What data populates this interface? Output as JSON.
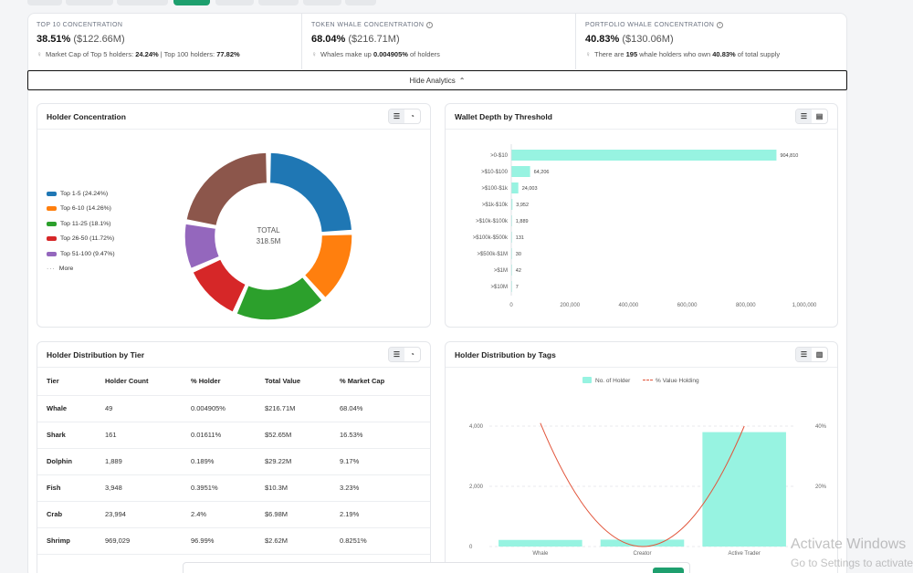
{
  "stats": [
    {
      "title": "TOP 10 CONCENTRATION",
      "main": "38.51%",
      "sub": "($122.66M)",
      "note_prefix": "Market Cap of Top 5 holders: ",
      "note_b1": "24.24%",
      "note_mid": " | Top 100 holders: ",
      "note_b2": "77.82%",
      "note_suffix": ""
    },
    {
      "title": "TOKEN WHALE CONCENTRATION",
      "main": "68.04%",
      "sub": "($216.71M)",
      "note_prefix": "Whales make up ",
      "note_b1": "0.004905%",
      "note_mid": " of holders",
      "note_b2": "",
      "note_suffix": ""
    },
    {
      "title": "PORTFOLIO WHALE CONCENTRATION",
      "main": "40.83%",
      "sub": "($130.06M)",
      "note_prefix": "There are ",
      "note_b1": "195",
      "note_mid": " whale holders who own ",
      "note_b2": "40.83%",
      "note_suffix": " of total supply"
    }
  ],
  "hide_analytics_label": "Hide Analytics",
  "panels": {
    "holder_concentration": "Holder Concentration",
    "wallet_depth": "Wallet Depth by Threshold",
    "holder_tier": "Holder Distribution by Tier",
    "holder_tags": "Holder Distribution by Tags"
  },
  "donut": {
    "center_label": "TOTAL",
    "center_value": "318.5M",
    "more_label": "More",
    "legend": [
      {
        "label": "Top 1-5 (24.24%)",
        "color": "#1f77b4"
      },
      {
        "label": "Top 6-10 (14.26%)",
        "color": "#ff7f0e"
      },
      {
        "label": "Top 11-25 (18.1%)",
        "color": "#2ca02c"
      },
      {
        "label": "Top 26-50 (11.72%)",
        "color": "#d62728"
      },
      {
        "label": "Top 51-100 (9.47%)",
        "color": "#9467bd"
      }
    ]
  },
  "table": {
    "headers": [
      "Tier",
      "Holder Count",
      "% Holder",
      "Total Value",
      "% Market Cap"
    ],
    "rows": [
      [
        "Whale",
        "49",
        "0.004905%",
        "$216.71M",
        "68.04%"
      ],
      [
        "Shark",
        "161",
        "0.01611%",
        "$52.65M",
        "16.53%"
      ],
      [
        "Dolphin",
        "1,889",
        "0.189%",
        "$29.22M",
        "9.17%"
      ],
      [
        "Fish",
        "3,948",
        "0.3951%",
        "$10.3M",
        "3.23%"
      ],
      [
        "Crab",
        "23,994",
        "2.4%",
        "$6.98M",
        "2.19%"
      ],
      [
        "Shrimp",
        "969,029",
        "96.99%",
        "$2.62M",
        "0.8251%"
      ]
    ]
  },
  "chart_data": [
    {
      "type": "pie",
      "categories": [
        "Top 1-5",
        "Top 6-10",
        "Top 11-25",
        "Top 26-50",
        "Top 51-100",
        "More"
      ],
      "values": [
        24.24,
        14.26,
        18.1,
        11.72,
        9.47,
        22.21
      ],
      "colors": [
        "#1f77b4",
        "#ff7f0e",
        "#2ca02c",
        "#d62728",
        "#9467bd",
        "#8c564b"
      ],
      "center_text": "TOTAL 318.5M"
    },
    {
      "type": "bar",
      "orientation": "horizontal",
      "categories": [
        ">0-$10",
        ">$10-$100",
        ">$100-$1k",
        ">$1k-$10k",
        ">$10k-$100k",
        ">$100k-$500k",
        ">$500k-$1M",
        ">$1M",
        ">$10M"
      ],
      "values": [
        904810,
        64206,
        24003,
        3952,
        1889,
        131,
        30,
        42,
        7
      ],
      "value_labels": [
        "904,810",
        "64,206",
        "24,003",
        "3,952",
        "1,889",
        "131",
        "30",
        "42",
        "7"
      ],
      "xlim": [
        0,
        1000000
      ],
      "xticks": [
        "0",
        "200,000",
        "400,000",
        "600,000",
        "800,000",
        "1,000,000"
      ],
      "color": "#97f3e1"
    },
    {
      "type": "bar",
      "categories": [
        "Whale",
        "Creator",
        "Active Trader"
      ],
      "series": [
        {
          "name": "No. of Holder",
          "type": "bar",
          "values": [
            220,
            230,
            3800
          ],
          "color": "#97f3e1"
        },
        {
          "name": "% Value Holding",
          "type": "line",
          "values": [
            41,
            0,
            40
          ],
          "color": "#e2553b"
        }
      ],
      "y_left_ticks": [
        "0",
        "2,000",
        "4,000"
      ],
      "ylim_left": [
        0,
        4000
      ],
      "y_right_ticks": [
        "20%",
        "40%"
      ],
      "ylim_right": [
        0,
        40
      ]
    }
  ],
  "watermark": {
    "line1": "Activate Windows",
    "line2": "Go to Settings to activate Windows."
  }
}
